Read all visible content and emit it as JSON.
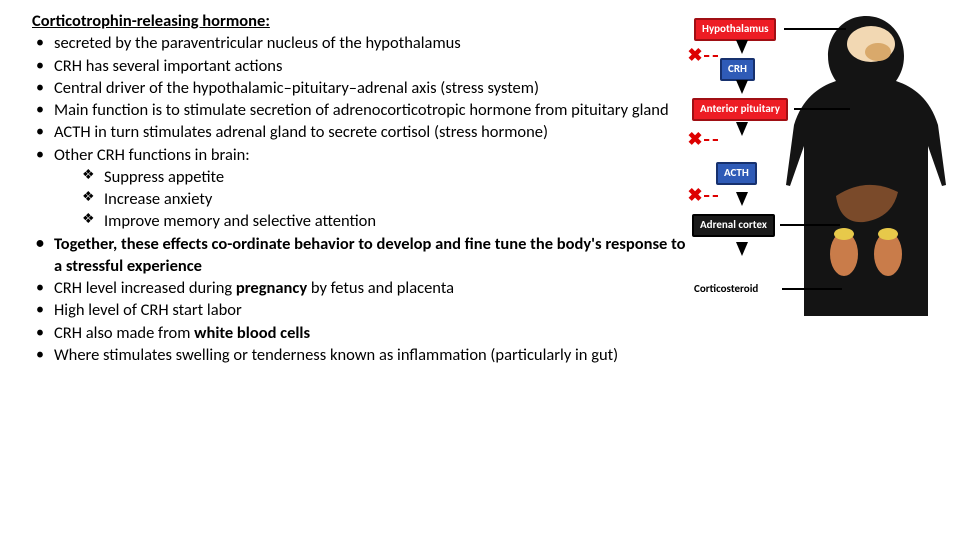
{
  "title": "Corticotrophin-releasing hormone:",
  "bullets": [
    {
      "text": "secreted by the paraventricular nucleus of the hypothalamus"
    },
    {
      "text": "CRH has several important actions"
    },
    {
      "text": " Central driver of the hypothalamic–pituitary–adrenal axis (stress system)"
    },
    {
      "text": "Main function is to stimulate secretion of adrenocorticotropic hormone from pituitary gland"
    },
    {
      "text": "ACTH in turn stimulates adrenal gland to secrete cortisol (stress hormone)"
    },
    {
      "text": "Other CRH functions in brain:",
      "sub": [
        "Suppress appetite",
        "Increase anxiety",
        "Improve memory and selective attention"
      ]
    },
    {
      "bold": true,
      "text": "Together, these effects co-ordinate behavior to develop and fine tune the body's response to a stressful experience"
    },
    {
      "html": "CRH level increased during <b>pregnancy</b> by fetus and placenta"
    },
    {
      "text": "High level of CRH start labor"
    },
    {
      "html": "CRH also made from <b>white blood cells</b>"
    },
    {
      "text": "Where stimulates swelling or tenderness  known as inflammation (particularly in gut)"
    }
  ],
  "diagram": {
    "type": "flowchart",
    "background_color": "#ffffff",
    "silhouette_color": "#141414",
    "head_color": "#1a1a1a",
    "brain_colors": [
      "#f2d8b3",
      "#d9a96b"
    ],
    "liver_color": "#7a4a2a",
    "kidney_color": "#c97c4a",
    "adrenal_color": "#e7c94a",
    "label_red": "#ed1c24",
    "label_blue": "#2f5bb7",
    "label_black": "#1a1a1a",
    "feedback_color": "#d00000",
    "labels": {
      "hypothalamus": "Hypothalamus",
      "crh": "CRH",
      "anterior_pituitary": "Anterior pituitary",
      "acth": "ACTH",
      "adrenal_cortex": "Adrenal cortex",
      "corticosteroid": "Corticosteroid"
    },
    "flow": [
      "hypothalamus",
      "crh",
      "anterior_pituitary",
      "acth",
      "adrenal_cortex",
      "corticosteroid"
    ],
    "feedback_targets": [
      "hypothalamus",
      "anterior_pituitary",
      "adrenal_cortex"
    ]
  }
}
